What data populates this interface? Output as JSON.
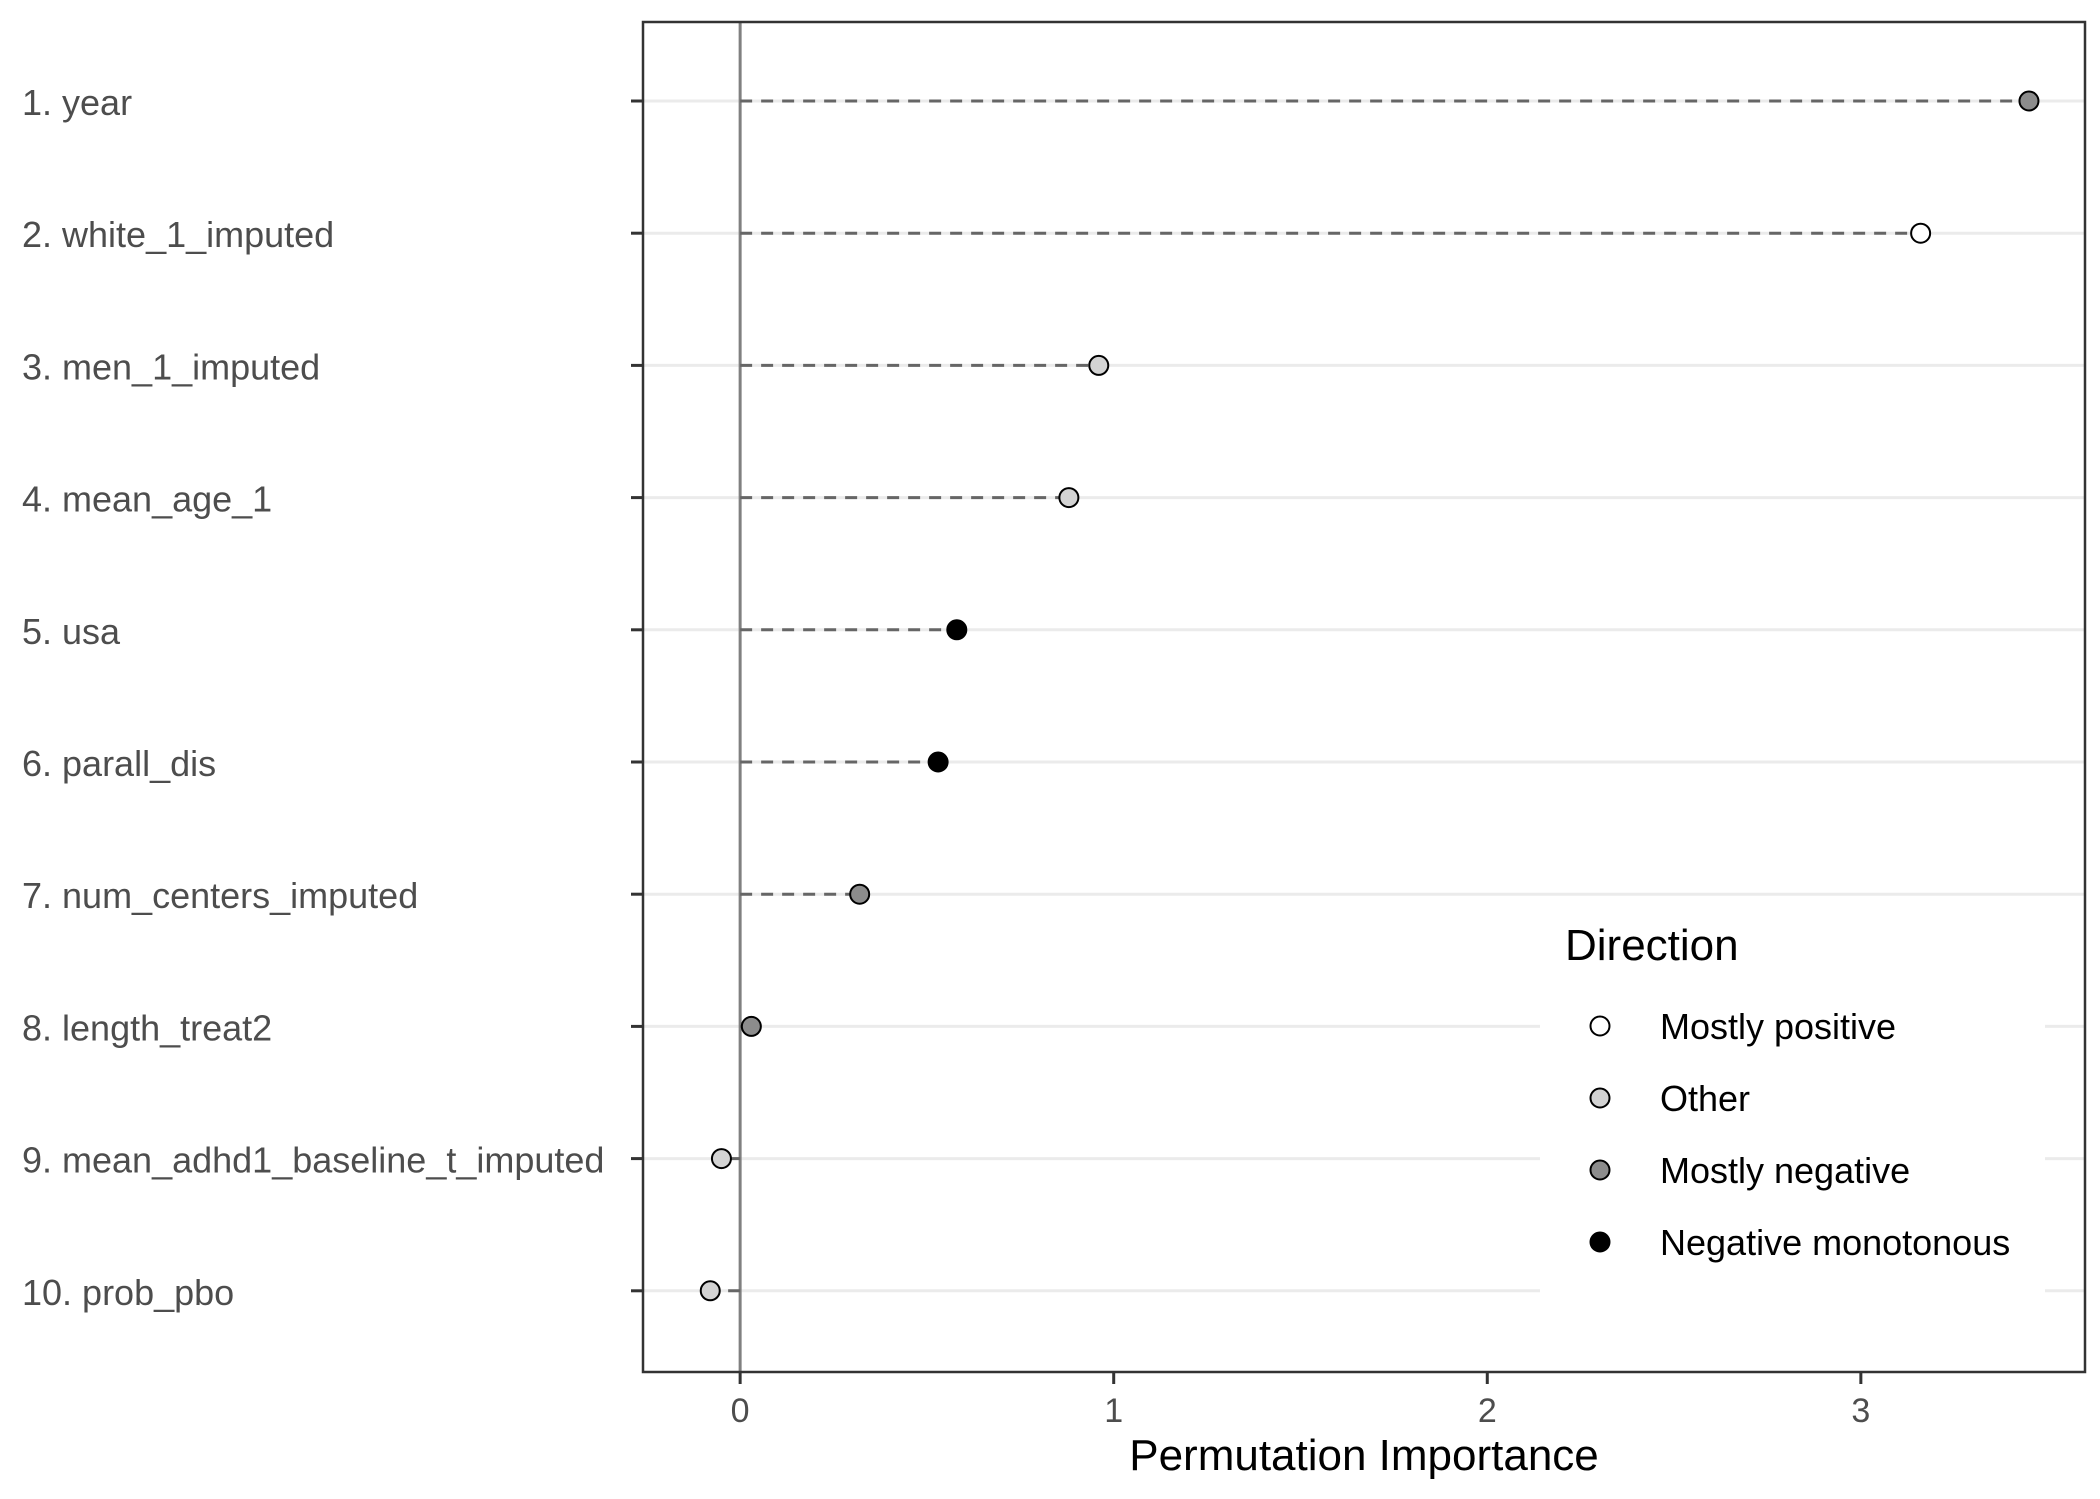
{
  "chart_data": {
    "type": "scatter",
    "xlabel": "Permutation Importance",
    "ylabel": "",
    "xlim": [
      -0.26,
      3.6
    ],
    "x_ticks": [
      "0",
      "1",
      "2",
      "3"
    ],
    "x_tick_values": [
      0,
      1,
      2,
      3
    ],
    "grid": "horizontal",
    "legend": {
      "title": "Direction",
      "placement": "bottom-right",
      "entries": [
        {
          "label": "Mostly positive",
          "color": "#ffffff"
        },
        {
          "label": "Other",
          "color": "#d3d3d3"
        },
        {
          "label": "Mostly negative",
          "color": "#8c8c8c"
        },
        {
          "label": "Negative monotonous",
          "color": "#000000"
        }
      ]
    },
    "points": [
      {
        "label": "1. year",
        "value": 3.45,
        "direction": "Mostly negative"
      },
      {
        "label": "2. white_1_imputed",
        "value": 3.16,
        "direction": "Mostly positive"
      },
      {
        "label": "3. men_1_imputed",
        "value": 0.96,
        "direction": "Other"
      },
      {
        "label": "4. mean_age_1",
        "value": 0.88,
        "direction": "Other"
      },
      {
        "label": "5. usa",
        "value": 0.58,
        "direction": "Negative monotonous"
      },
      {
        "label": "6. parall_dis",
        "value": 0.53,
        "direction": "Negative monotonous"
      },
      {
        "label": "7. num_centers_imputed",
        "value": 0.32,
        "direction": "Mostly negative"
      },
      {
        "label": "8. length_treat2",
        "value": 0.03,
        "direction": "Mostly negative"
      },
      {
        "label": "9. mean_adhd1_baseline_t_imputed",
        "value": -0.05,
        "direction": "Other"
      },
      {
        "label": "10. prob_pbo",
        "value": -0.08,
        "direction": "Other"
      }
    ]
  }
}
